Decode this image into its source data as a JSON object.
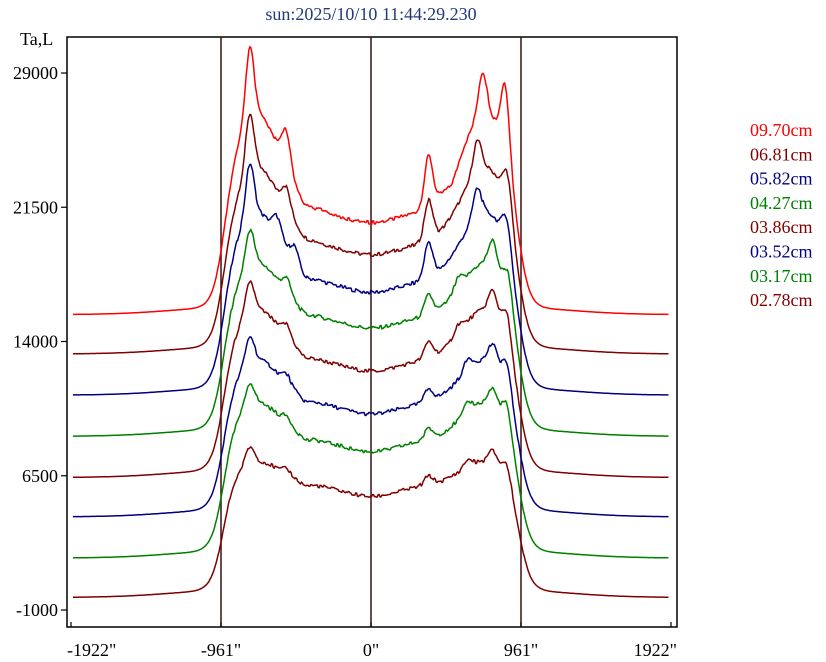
{
  "chart_data": {
    "type": "line",
    "title": "sun:2025/10/10 11:44:29.230",
    "ylabel": "Ta,L",
    "xlim": [
      -1922,
      1922
    ],
    "ylim": [
      -1000,
      29000
    ],
    "x_ticks": [
      -1922,
      -961,
      0,
      961,
      1922
    ],
    "x_tick_labels": [
      "-1922\"",
      "-961\"",
      "0\"",
      "961\"",
      "1922\""
    ],
    "y_ticks": [
      29000,
      21500,
      14000,
      6500,
      -1000
    ],
    "y_tick_labels": [
      "29000",
      "21500",
      "14000",
      "6500",
      "-1000"
    ],
    "vlines": [
      -961,
      0,
      961
    ],
    "grid": false,
    "legend_position": "right",
    "series": [
      {
        "name": "09.70cm",
        "color": "#ff0000",
        "base": 15500,
        "plateau": 20800,
        "limb": 5500,
        "peaks": [
          [
            -776,
            3900
          ],
          [
            -543,
            2000
          ],
          [
            369,
            2800
          ],
          [
            715,
            2400
          ],
          [
            861,
            3800
          ]
        ],
        "dips": [
          [
            -420,
            -300
          ],
          [
            520,
            -500
          ]
        ]
      },
      {
        "name": "06.81cm",
        "color": "#800000",
        "base": 13300,
        "plateau": 19000,
        "limb": 4300,
        "peaks": [
          [
            -776,
            3200
          ],
          [
            -543,
            1200
          ],
          [
            369,
            2200
          ],
          [
            680,
            1800
          ],
          [
            875,
            2000
          ]
        ],
        "dips": [
          [
            -420,
            -200
          ]
        ]
      },
      {
        "name": "05.82cm",
        "color": "#000080",
        "base": 11000,
        "plateau": 16900,
        "limb": 3900,
        "peaks": [
          [
            -776,
            2900
          ],
          [
            -600,
            1000
          ],
          [
            -490,
            900
          ],
          [
            369,
            2000
          ],
          [
            680,
            1600
          ],
          [
            870,
            1700
          ]
        ],
        "dips": [
          [
            -420,
            -250
          ]
        ]
      },
      {
        "name": "04.27cm",
        "color": "#008000",
        "base": 8700,
        "plateau": 14900,
        "limb": 3100,
        "peaks": [
          [
            -776,
            2000
          ],
          [
            -540,
            800
          ],
          [
            369,
            1100
          ],
          [
            560,
            600
          ],
          [
            780,
            1400
          ],
          [
            880,
            1500
          ]
        ],
        "dips": [
          [
            -420,
            -200
          ]
        ]
      },
      {
        "name": "03.86cm",
        "color": "#800000",
        "base": 6400,
        "plateau": 12500,
        "limb": 2900,
        "peaks": [
          [
            -776,
            1700
          ],
          [
            -540,
            700
          ],
          [
            369,
            900
          ],
          [
            560,
            500
          ],
          [
            780,
            1200
          ],
          [
            870,
            1500
          ]
        ],
        "dips": [
          [
            -420,
            -200
          ]
        ]
      },
      {
        "name": "03.52cm",
        "color": "#000080",
        "base": 4200,
        "plateau": 10100,
        "limb": 2500,
        "peaks": [
          [
            -776,
            1400
          ],
          [
            -540,
            500
          ],
          [
            369,
            700
          ],
          [
            620,
            600
          ],
          [
            780,
            1000
          ],
          [
            870,
            1300
          ]
        ],
        "dips": [
          [
            -420,
            -200
          ]
        ]
      },
      {
        "name": "03.17cm",
        "color": "#008000",
        "base": 1900,
        "plateau": 8000,
        "limb": 2200,
        "peaks": [
          [
            -776,
            1200
          ],
          [
            -540,
            400
          ],
          [
            369,
            600
          ],
          [
            620,
            500
          ],
          [
            780,
            900
          ],
          [
            870,
            1300
          ]
        ],
        "dips": [
          [
            -420,
            -200
          ]
        ]
      },
      {
        "name": "02.78cm",
        "color": "#800000",
        "base": -300,
        "plateau": 5500,
        "limb": 1400,
        "peaks": [
          [
            -776,
            900
          ],
          [
            -540,
            300
          ],
          [
            369,
            500
          ],
          [
            620,
            400
          ],
          [
            780,
            700
          ],
          [
            870,
            900
          ]
        ],
        "dips": [
          [
            -420,
            -150
          ]
        ]
      }
    ]
  }
}
